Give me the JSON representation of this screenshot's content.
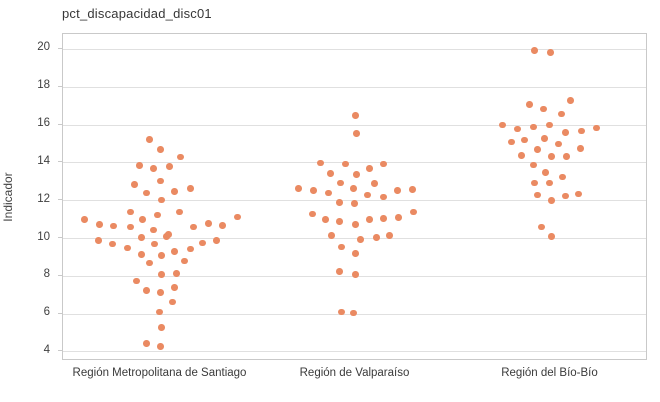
{
  "title": "pct_discapacidad_disc01",
  "colors": {
    "dot": "#ea8a62",
    "grid": "#e0e0e0",
    "border": "#c9c9c9",
    "title_text": "#373737",
    "tick_text": "#3f3f3f"
  },
  "chart_data": {
    "type": "scatter",
    "subtype": "strip-jitter",
    "title": "pct_discapacidad_disc01",
    "xlabel": "",
    "ylabel": "Indicador",
    "grid": true,
    "legend": "none",
    "y_ticks": [
      4,
      6,
      8,
      10,
      12,
      14,
      16,
      18,
      20
    ],
    "ylim": [
      3.52,
      20.82
    ],
    "categories": [
      "Región Metropolitana de Santiago",
      "Región de Valparaíso",
      "Región del Bío-Bío"
    ],
    "series": [
      {
        "name": "Región Metropolitana de Santiago",
        "points": [
          [
            -11,
            15.25
          ],
          [
            0,
            14.7
          ],
          [
            20,
            14.3
          ],
          [
            -21,
            13.85
          ],
          [
            -7,
            13.7
          ],
          [
            9,
            13.8
          ],
          [
            0,
            13.05
          ],
          [
            -26,
            12.85
          ],
          [
            -14,
            12.4
          ],
          [
            14,
            12.5
          ],
          [
            30,
            12.65
          ],
          [
            1,
            12.05
          ],
          [
            -30,
            11.4
          ],
          [
            -3,
            11.25
          ],
          [
            19,
            11.4
          ],
          [
            -76,
            11.0
          ],
          [
            -61,
            10.75
          ],
          [
            -47,
            10.65
          ],
          [
            -30,
            10.6
          ],
          [
            -18,
            11.0
          ],
          [
            -7,
            10.45
          ],
          [
            8,
            10.2
          ],
          [
            33,
            10.6
          ],
          [
            48,
            10.8
          ],
          [
            62,
            10.7
          ],
          [
            77,
            11.15
          ],
          [
            -62,
            9.9
          ],
          [
            -48,
            9.7
          ],
          [
            -33,
            9.5
          ],
          [
            -19,
            10.05
          ],
          [
            -6,
            9.7
          ],
          [
            6,
            10.1
          ],
          [
            -19,
            9.15
          ],
          [
            1,
            9.1
          ],
          [
            14,
            9.3
          ],
          [
            30,
            9.45
          ],
          [
            42,
            9.75
          ],
          [
            56,
            9.9
          ],
          [
            -11,
            8.7
          ],
          [
            24,
            8.8
          ],
          [
            1,
            8.1
          ],
          [
            16,
            8.15
          ],
          [
            -24,
            7.75
          ],
          [
            -14,
            7.25
          ],
          [
            0,
            7.15
          ],
          [
            14,
            7.4
          ],
          [
            12,
            6.65
          ],
          [
            -1,
            6.1
          ],
          [
            1,
            5.3
          ],
          [
            -14,
            4.45
          ],
          [
            0,
            4.3
          ]
        ]
      },
      {
        "name": "Región de Valparaíso",
        "points": [
          [
            0,
            16.5
          ],
          [
            1,
            15.55
          ],
          [
            -35,
            14.0
          ],
          [
            -10,
            13.95
          ],
          [
            28,
            13.95
          ],
          [
            14,
            13.7
          ],
          [
            -25,
            13.45
          ],
          [
            1,
            13.4
          ],
          [
            -15,
            12.95
          ],
          [
            19,
            12.9
          ],
          [
            -2,
            12.65
          ],
          [
            -57,
            12.65
          ],
          [
            -42,
            12.55
          ],
          [
            42,
            12.55
          ],
          [
            57,
            12.6
          ],
          [
            -27,
            12.4
          ],
          [
            12,
            12.3
          ],
          [
            28,
            12.2
          ],
          [
            -16,
            11.9
          ],
          [
            -1,
            11.85
          ],
          [
            -43,
            11.3
          ],
          [
            -30,
            11.0
          ],
          [
            -16,
            10.9
          ],
          [
            0,
            10.75
          ],
          [
            14,
            11.0
          ],
          [
            28,
            11.05
          ],
          [
            43,
            11.1
          ],
          [
            58,
            11.4
          ],
          [
            -24,
            10.15
          ],
          [
            5,
            9.95
          ],
          [
            21,
            10.05
          ],
          [
            34,
            10.15
          ],
          [
            -14,
            9.55
          ],
          [
            0,
            9.2
          ],
          [
            -16,
            8.25
          ],
          [
            0,
            8.1
          ],
          [
            -14,
            6.1
          ],
          [
            -2,
            6.05
          ]
        ]
      },
      {
        "name": "Región del Bío-Bío",
        "points": [
          [
            -16,
            19.95
          ],
          [
            0,
            19.85
          ],
          [
            -21,
            17.1
          ],
          [
            20,
            17.3
          ],
          [
            -7,
            16.85
          ],
          [
            11,
            16.6
          ],
          [
            -48,
            16.0
          ],
          [
            -33,
            15.8
          ],
          [
            -17,
            15.9
          ],
          [
            -1,
            16.0
          ],
          [
            15,
            15.6
          ],
          [
            31,
            15.7
          ],
          [
            46,
            15.85
          ],
          [
            -39,
            15.1
          ],
          [
            -26,
            15.2
          ],
          [
            -6,
            15.3
          ],
          [
            8,
            15.0
          ],
          [
            -29,
            14.4
          ],
          [
            -13,
            14.7
          ],
          [
            1,
            14.35
          ],
          [
            16,
            14.35
          ],
          [
            30,
            14.75
          ],
          [
            -17,
            13.9
          ],
          [
            -5,
            13.5
          ],
          [
            12,
            13.25
          ],
          [
            -16,
            12.95
          ],
          [
            -1,
            12.95
          ],
          [
            -13,
            12.3
          ],
          [
            1,
            12.0
          ],
          [
            15,
            12.25
          ],
          [
            28,
            12.35
          ],
          [
            -9,
            10.6
          ],
          [
            1,
            10.1
          ]
        ]
      }
    ]
  }
}
